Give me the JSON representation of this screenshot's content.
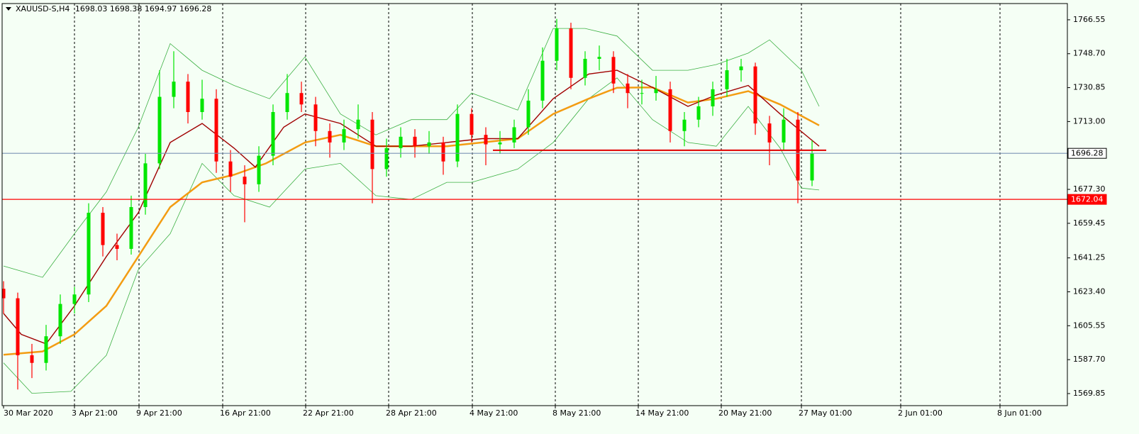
{
  "chart_data": {
    "type": "candlestick",
    "title": "XAUUSD-S,H4",
    "header_quote": [
      1698.03,
      1698.38,
      1694.97,
      1696.28
    ],
    "up_color": "#00e600",
    "down_color": "#ff0000",
    "open": [
      1625,
      1620,
      1590,
      1586,
      1600,
      1617,
      1622,
      1665,
      1648,
      1646,
      1668,
      1691,
      1726,
      1734,
      1718,
      1725,
      1692,
      1684,
      1680,
      1695,
      1718,
      1728,
      1722,
      1708,
      1702,
      1709,
      1714,
      1688,
      1699,
      1705,
      1700,
      1702,
      1692,
      1717,
      1706,
      1701,
      1702,
      1710,
      1724,
      1745,
      1762,
      1736,
      1746,
      1747,
      1733,
      1728,
      1728,
      1730,
      1708,
      1714,
      1721,
      1730,
      1740,
      1742,
      1712,
      1702,
      1714,
      1682
    ],
    "high": [
      1629,
      1623,
      1596,
      1606,
      1622,
      1626,
      1670,
      1668,
      1654,
      1674,
      1696,
      1740,
      1750,
      1738,
      1735,
      1730,
      1698,
      1690,
      1700,
      1722,
      1738,
      1734,
      1726,
      1712,
      1714,
      1722,
      1718,
      1704,
      1710,
      1709,
      1708,
      1705,
      1722,
      1720,
      1710,
      1708,
      1714,
      1730,
      1752,
      1767,
      1765,
      1750,
      1753,
      1750,
      1738,
      1735,
      1737,
      1734,
      1718,
      1726,
      1734,
      1746,
      1746,
      1744,
      1716,
      1720,
      1718,
      1703
    ],
    "low": [
      1612,
      1572,
      1578,
      1582,
      1596,
      1612,
      1618,
      1642,
      1640,
      1643,
      1664,
      1688,
      1720,
      1712,
      1714,
      1686,
      1676,
      1660,
      1676,
      1690,
      1714,
      1718,
      1700,
      1694,
      1698,
      1704,
      1670,
      1684,
      1694,
      1694,
      1696,
      1685,
      1689,
      1702,
      1690,
      1696,
      1699,
      1706,
      1720,
      1740,
      1730,
      1732,
      1740,
      1728,
      1720,
      1722,
      1724,
      1702,
      1700,
      1710,
      1716,
      1726,
      1734,
      1706,
      1690,
      1698,
      1670,
      1679
    ],
    "close": [
      1620,
      1590,
      1586,
      1600,
      1617,
      1622,
      1665,
      1648,
      1646,
      1668,
      1691,
      1726,
      1734,
      1718,
      1725,
      1692,
      1684,
      1680,
      1695,
      1718,
      1728,
      1722,
      1708,
      1702,
      1709,
      1714,
      1688,
      1699,
      1705,
      1700,
      1702,
      1692,
      1717,
      1706,
      1701,
      1702,
      1710,
      1724,
      1745,
      1762,
      1736,
      1746,
      1747,
      1733,
      1728,
      1728,
      1730,
      1708,
      1714,
      1721,
      1730,
      1740,
      1742,
      1712,
      1702,
      1714,
      1682,
      1696.28
    ],
    "overlays": [
      {
        "color": "#3cb043",
        "width": 0.8,
        "x": [
          0,
          2.75,
          5,
          7.25,
          9.5,
          11.75,
          14,
          16.25,
          18.75,
          21.25,
          23.75,
          26.25,
          28.75,
          31.25,
          33,
          36.25,
          38.75,
          41,
          43.25,
          45.75,
          48.25,
          50.25,
          52.5,
          54,
          56.25,
          57.5
        ],
        "values": [
          1637,
          1631,
          1654,
          1676,
          1710,
          1754,
          1740,
          1732,
          1725,
          1747,
          1717,
          1706,
          1714,
          1714,
          1728,
          1719,
          1762,
          1762,
          1758,
          1740,
          1740,
          1743,
          1749,
          1756,
          1740,
          1721
        ]
      },
      {
        "color": "#3cb043",
        "width": 0.8,
        "x": [
          0,
          2,
          4.75,
          7.25,
          9.5,
          11.75,
          14,
          16.25,
          18.75,
          21.25,
          23.75,
          26.25,
          28.75,
          31.25,
          33,
          36.25,
          38.75,
          41.25,
          43.25,
          45.75,
          48.25,
          50.25,
          52.5,
          54.75,
          56.25,
          57.5
        ],
        "values": [
          1586,
          1570,
          1571,
          1590,
          1635,
          1654,
          1691,
          1674,
          1668,
          1688,
          1691,
          1674,
          1672,
          1681,
          1681,
          1688,
          1702,
          1725,
          1736,
          1714,
          1702,
          1700,
          1721,
          1699,
          1678,
          1677
        ]
      },
      {
        "color": "#f39c12",
        "width": 2.5,
        "x": [
          0,
          2.75,
          5,
          7.25,
          9.5,
          11.75,
          14,
          16.25,
          18.5,
          21.25,
          23.75,
          26.25,
          28.75,
          31.25,
          33.75,
          36.25,
          38.75,
          41.25,
          43.25,
          45.75,
          48.25,
          50.25,
          52.5,
          54.75,
          57.5
        ],
        "values": [
          1590.3,
          1592,
          1601,
          1616,
          1642,
          1668,
          1681,
          1685,
          1691,
          1702,
          1706,
          1700,
          1700,
          1700,
          1702,
          1704,
          1717,
          1725,
          1730.8,
          1731,
          1723,
          1725,
          1729,
          1722,
          1711
        ]
      },
      {
        "color": "#a00000",
        "width": 1.4,
        "x": [
          0,
          1.25,
          3,
          5,
          7.25,
          9.5,
          11.75,
          14,
          16.25,
          17.75,
          19.75,
          21.25,
          23.75,
          26.25,
          28.75,
          31.25,
          33.75,
          36.25,
          38.75,
          41.25,
          43.25,
          45.75,
          48.25,
          50.25,
          52.5,
          54.75,
          57.5
        ],
        "values": [
          1612,
          1601,
          1596,
          1616,
          1642,
          1665,
          1702,
          1712,
          1699,
          1689,
          1710,
          1717,
          1712,
          1700,
          1700,
          1702,
          1704,
          1704,
          1725,
          1738,
          1740,
          1731,
          1721,
          1727,
          1732,
          1717,
          1700
        ]
      }
    ],
    "levels": [
      {
        "value": 1672.04,
        "color": "#ff0000",
        "price_label": true,
        "label_bg": "#ff0000",
        "label_text": "#ffffff"
      },
      {
        "value": 1696.28,
        "color": "#7b93b5",
        "price_label": true,
        "label_bg": "#ffffff",
        "label_text": "#000000"
      },
      {
        "value": 1697.9,
        "color": "#e00000",
        "x": [
          34.5,
          58
        ]
      }
    ],
    "xlim": [
      -0.1,
      75
    ],
    "ylim": [
      1563.5,
      1775.1
    ],
    "yticks": [
      1766.55,
      {
        "value": 1748.7,
        "label": "1748.70"
      },
      1730.85,
      {
        "value": 1713,
        "label": "1713.00"
      },
      {
        "value": 1677.3,
        "label": "1677.30"
      },
      1659.45,
      1641.25,
      {
        "value": 1623.4,
        "label": "1623.40"
      },
      1605.55,
      {
        "value": 1587.7,
        "label": "1587.70"
      },
      1569.85
    ],
    "xticks": [
      {
        "value": 0,
        "label": "30 Mar 2020"
      },
      {
        "value": 5,
        "label": "3 Apr 21:00"
      },
      {
        "value": 9.55,
        "label": "9 Apr 21:00"
      },
      {
        "value": 15.45,
        "label": "16 Apr 21:00"
      },
      {
        "value": 21.3,
        "label": "22 Apr 21:00"
      },
      {
        "value": 27.15,
        "label": "28 Apr 21:00"
      },
      {
        "value": 33.05,
        "label": "4 May 21:00"
      },
      {
        "value": 38.9,
        "label": "8 May 21:00"
      },
      {
        "value": 44.75,
        "label": "14 May 21:00"
      },
      {
        "value": 50.6,
        "label": "20 May 21:00"
      },
      {
        "value": 56.25,
        "label": "27 May 01:00"
      },
      {
        "value": 63.25,
        "label": "2 Jun 01:00"
      },
      {
        "value": 70.25,
        "label": "8 Jun 01:00"
      }
    ],
    "grid": true
  }
}
